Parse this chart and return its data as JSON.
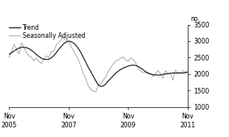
{
  "ylabel": "no.",
  "ylim": [
    1000,
    3500
  ],
  "yticks": [
    1000,
    1500,
    2000,
    2500,
    3000,
    3500
  ],
  "xtick_labels": [
    "Nov\n2005",
    "Nov\n2007",
    "Nov\n2009",
    "Nov\n2011"
  ],
  "xtick_positions": [
    0,
    24,
    48,
    72
  ],
  "trend_color": "#111111",
  "seas_color": "#aaaaaa",
  "trend_linewidth": 0.8,
  "seas_linewidth": 0.7,
  "background_color": "#ffffff",
  "legend_fontsize": 5.5,
  "axis_fontsize": 5.5,
  "trend_x": [
    0,
    1,
    2,
    3,
    4,
    5,
    6,
    7,
    8,
    9,
    10,
    11,
    12,
    13,
    14,
    15,
    16,
    17,
    18,
    19,
    20,
    21,
    22,
    23,
    24,
    25,
    26,
    27,
    28,
    29,
    30,
    31,
    32,
    33,
    34,
    35,
    36,
    37,
    38,
    39,
    40,
    41,
    42,
    43,
    44,
    45,
    46,
    47,
    48,
    49,
    50,
    51,
    52,
    53,
    54,
    55,
    56,
    57,
    58,
    59,
    60,
    61,
    62,
    63,
    64,
    65,
    66,
    67,
    68,
    69,
    70,
    71,
    72
  ],
  "trend_y": [
    2600,
    2650,
    2700,
    2750,
    2790,
    2810,
    2810,
    2800,
    2770,
    2720,
    2660,
    2590,
    2530,
    2480,
    2450,
    2440,
    2450,
    2490,
    2560,
    2650,
    2750,
    2840,
    2920,
    2970,
    3000,
    2980,
    2940,
    2870,
    2760,
    2640,
    2490,
    2340,
    2190,
    2060,
    1920,
    1780,
    1660,
    1620,
    1640,
    1700,
    1790,
    1870,
    1950,
    2030,
    2090,
    2140,
    2180,
    2210,
    2240,
    2260,
    2270,
    2260,
    2230,
    2180,
    2130,
    2070,
    2030,
    2000,
    1980,
    1970,
    1970,
    1970,
    1990,
    2000,
    2010,
    2020,
    2030,
    2030,
    2030,
    2030,
    2030,
    2040,
    2050
  ],
  "seas_x": [
    0,
    2,
    4,
    5,
    6,
    7,
    8,
    9,
    10,
    11,
    12,
    13,
    14,
    15,
    16,
    17,
    18,
    19,
    20,
    21,
    22,
    23,
    24,
    25,
    26,
    27,
    28,
    29,
    30,
    31,
    32,
    33,
    34,
    35,
    36,
    37,
    38,
    39,
    40,
    41,
    42,
    43,
    44,
    45,
    46,
    47,
    48,
    49,
    50,
    51,
    52,
    53,
    54,
    55,
    56,
    57,
    58,
    59,
    60,
    61,
    62,
    63,
    64,
    65,
    66,
    67,
    68,
    69,
    70,
    71,
    72
  ],
  "seas_y": [
    2500,
    2900,
    2600,
    2950,
    2800,
    2650,
    2550,
    2500,
    2400,
    2480,
    2380,
    2320,
    2450,
    2550,
    2500,
    2680,
    2700,
    2880,
    2950,
    3050,
    3100,
    3000,
    3000,
    2820,
    2700,
    2560,
    2420,
    2220,
    2000,
    1820,
    1620,
    1530,
    1470,
    1460,
    1680,
    1700,
    1820,
    1920,
    2080,
    2200,
    2310,
    2390,
    2430,
    2480,
    2520,
    2430,
    2380,
    2490,
    2440,
    2340,
    2180,
    2080,
    2050,
    2040,
    2000,
    2010,
    1920,
    2010,
    2100,
    2010,
    1870,
    2100,
    2010,
    2010,
    1810,
    2120,
    2020,
    2020,
    2110,
    2050,
    2090
  ]
}
